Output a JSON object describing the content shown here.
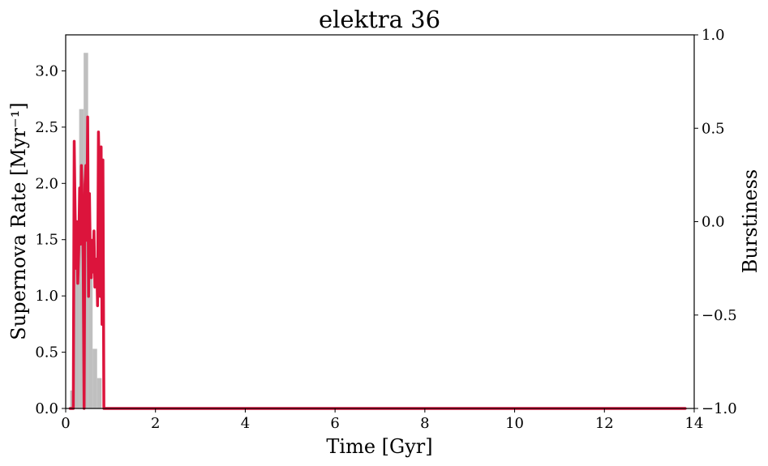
{
  "chart_data": {
    "type": "bar",
    "title": "elektra 36",
    "xlabel": "Time [Gyr]",
    "ylabel": "Supernova Rate [Myr⁻¹]",
    "y2label": "Burstiness",
    "xlim": [
      0,
      14
    ],
    "ylim": [
      0,
      3.32
    ],
    "y2lim": [
      -1.0,
      1.0
    ],
    "xticks": [
      "0",
      "2",
      "4",
      "6",
      "8",
      "10",
      "12",
      "14"
    ],
    "yticks": [
      "0.0",
      "0.5",
      "1.0",
      "1.5",
      "2.0",
      "2.5",
      "3.0"
    ],
    "y2ticks": [
      "−1.0",
      "−0.5",
      "0.0",
      "0.5",
      "1.0"
    ],
    "colors": {
      "histogram": "#bfbfbf",
      "burstiness": "#dc143c"
    },
    "series": [
      {
        "type": "histogram",
        "bin_width": 0.1,
        "bins": [
          {
            "x": 0.15,
            "y": 0.16
          },
          {
            "x": 0.25,
            "y": 1.33
          },
          {
            "x": 0.35,
            "y": 2.66
          },
          {
            "x": 0.45,
            "y": 3.16
          },
          {
            "x": 0.55,
            "y": 1.33
          },
          {
            "x": 0.65,
            "y": 0.53
          },
          {
            "x": 0.75,
            "y": 0.27
          }
        ]
      },
      {
        "type": "line",
        "axis": "right",
        "points": [
          {
            "x": 0.1,
            "y": -1.0
          },
          {
            "x": 0.17,
            "y": -1.0
          },
          {
            "x": 0.19,
            "y": 0.43
          },
          {
            "x": 0.21,
            "y": 0.05
          },
          {
            "x": 0.23,
            "y": -0.25
          },
          {
            "x": 0.25,
            "y": 0.0
          },
          {
            "x": 0.27,
            "y": -0.33
          },
          {
            "x": 0.29,
            "y": -0.15
          },
          {
            "x": 0.31,
            "y": 0.18
          },
          {
            "x": 0.33,
            "y": -0.12
          },
          {
            "x": 0.35,
            "y": 0.3
          },
          {
            "x": 0.37,
            "y": 0.1
          },
          {
            "x": 0.39,
            "y": -0.2
          },
          {
            "x": 0.41,
            "y": -1.0
          },
          {
            "x": 0.43,
            "y": 0.2
          },
          {
            "x": 0.45,
            "y": 0.3
          },
          {
            "x": 0.47,
            "y": -0.1
          },
          {
            "x": 0.49,
            "y": 0.56
          },
          {
            "x": 0.51,
            "y": -0.4
          },
          {
            "x": 0.53,
            "y": 0.15
          },
          {
            "x": 0.55,
            "y": -0.2
          },
          {
            "x": 0.57,
            "y": -0.3
          },
          {
            "x": 0.59,
            "y": -0.1
          },
          {
            "x": 0.61,
            "y": -0.27
          },
          {
            "x": 0.63,
            "y": -0.05
          },
          {
            "x": 0.65,
            "y": -0.35
          },
          {
            "x": 0.67,
            "y": -0.3
          },
          {
            "x": 0.69,
            "y": -0.2
          },
          {
            "x": 0.71,
            "y": -0.45
          },
          {
            "x": 0.73,
            "y": 0.48
          },
          {
            "x": 0.75,
            "y": 0.2
          },
          {
            "x": 0.77,
            "y": -0.4
          },
          {
            "x": 0.79,
            "y": 0.4
          },
          {
            "x": 0.81,
            "y": -0.55
          },
          {
            "x": 0.83,
            "y": 0.33
          },
          {
            "x": 0.85,
            "y": -1.0
          },
          {
            "x": 0.9,
            "y": -1.0
          },
          {
            "x": 13.8,
            "y": -1.0
          }
        ]
      }
    ]
  }
}
